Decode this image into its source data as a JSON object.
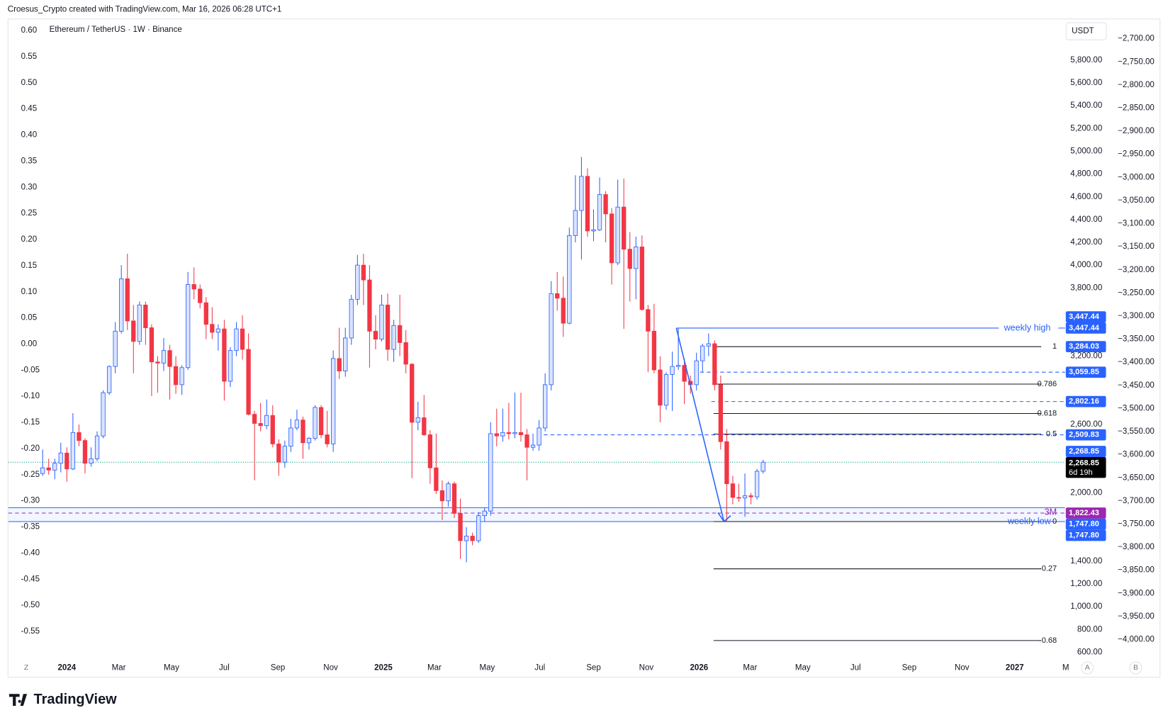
{
  "header": {
    "credit": "Croesus_Crypto created with TradingView.com, Mar 16, 2026 06:28 UTC+1"
  },
  "footer": {
    "logo": "TradingView"
  },
  "chart_data": {
    "type": "candlestick",
    "title": "Ethereum / TetherUS · 1W · Binance",
    "currency": "USDT",
    "x_start": "2023-12-04",
    "colors": {
      "up": "#2962ff",
      "down": "#f23645"
    },
    "candles": [
      [
        2170,
        2380,
        2150,
        2220
      ],
      [
        2220,
        2300,
        2160,
        2200
      ],
      [
        2200,
        2300,
        2120,
        2260
      ],
      [
        2260,
        2440,
        2180,
        2350
      ],
      [
        2350,
        2400,
        2100,
        2210
      ],
      [
        2210,
        2700,
        2200,
        2530
      ],
      [
        2530,
        2600,
        2410,
        2460
      ],
      [
        2460,
        2480,
        2170,
        2260
      ],
      [
        2260,
        2400,
        2230,
        2300
      ],
      [
        2300,
        2540,
        2280,
        2500
      ],
      [
        2500,
        2900,
        2480,
        2880
      ],
      [
        2880,
        3120,
        2860,
        3110
      ],
      [
        3110,
        3500,
        3050,
        3420
      ],
      [
        3420,
        4000,
        3400,
        3880
      ],
      [
        3880,
        4100,
        3430,
        3510
      ],
      [
        3510,
        3650,
        3050,
        3330
      ],
      [
        3330,
        3680,
        3300,
        3650
      ],
      [
        3650,
        3680,
        3300,
        3450
      ],
      [
        3450,
        3480,
        2850,
        3150
      ],
      [
        3150,
        3200,
        2880,
        3140
      ],
      [
        3140,
        3360,
        3070,
        3250
      ],
      [
        3250,
        3300,
        2820,
        3110
      ],
      [
        3110,
        3200,
        2870,
        2950
      ],
      [
        2950,
        3120,
        2860,
        3100
      ],
      [
        3100,
        3940,
        3080,
        3830
      ],
      [
        3830,
        3980,
        3700,
        3790
      ],
      [
        3790,
        3830,
        3620,
        3670
      ],
      [
        3670,
        3720,
        3350,
        3480
      ],
      [
        3480,
        3630,
        3350,
        3410
      ],
      [
        3410,
        3480,
        3250,
        3440
      ],
      [
        3440,
        3520,
        2810,
        2980
      ],
      [
        2980,
        3280,
        2930,
        3250
      ],
      [
        3250,
        3500,
        3200,
        3440
      ],
      [
        3440,
        3560,
        3170,
        3260
      ],
      [
        3260,
        3400,
        2680,
        2690
      ],
      [
        2690,
        2720,
        2110,
        2610
      ],
      [
        2610,
        2790,
        2540,
        2590
      ],
      [
        2590,
        2820,
        2560,
        2680
      ],
      [
        2680,
        2770,
        2400,
        2430
      ],
      [
        2430,
        2470,
        2150,
        2270
      ],
      [
        2270,
        2460,
        2220,
        2410
      ],
      [
        2410,
        2650,
        2360,
        2570
      ],
      [
        2570,
        2730,
        2550,
        2640
      ],
      [
        2640,
        2670,
        2300,
        2440
      ],
      [
        2440,
        2490,
        2380,
        2480
      ],
      [
        2480,
        2770,
        2460,
        2750
      ],
      [
        2750,
        2770,
        2480,
        2510
      ],
      [
        2510,
        2720,
        2400,
        2430
      ],
      [
        2430,
        3250,
        2360,
        3180
      ],
      [
        3180,
        3450,
        3000,
        3070
      ],
      [
        3070,
        3450,
        3020,
        3360
      ],
      [
        3360,
        3740,
        3300,
        3700
      ],
      [
        3700,
        4090,
        3650,
        4000
      ],
      [
        4000,
        4100,
        3650,
        3870
      ],
      [
        3870,
        4000,
        3100,
        3420
      ],
      [
        3420,
        3560,
        3260,
        3350
      ],
      [
        3350,
        3740,
        3330,
        3650
      ],
      [
        3650,
        3750,
        3160,
        3260
      ],
      [
        3260,
        3520,
        3150,
        3470
      ],
      [
        3470,
        3740,
        3200,
        3320
      ],
      [
        3320,
        3430,
        3050,
        3130
      ],
      [
        3130,
        3140,
        2130,
        2620
      ],
      [
        2620,
        2800,
        2550,
        2660
      ],
      [
        2660,
        2860,
        2500,
        2510
      ],
      [
        2510,
        2550,
        2080,
        2220
      ],
      [
        2220,
        2520,
        1990,
        2020
      ],
      [
        2020,
        2110,
        1760,
        1930
      ],
      [
        1930,
        2100,
        1880,
        2080
      ],
      [
        2080,
        2100,
        1780,
        1820
      ],
      [
        1820,
        1950,
        1420,
        1580
      ],
      [
        1580,
        1700,
        1390,
        1620
      ],
      [
        1620,
        1650,
        1540,
        1580
      ],
      [
        1580,
        1830,
        1560,
        1800
      ],
      [
        1800,
        1870,
        1750,
        1840
      ],
      [
        1840,
        2620,
        1800,
        2520
      ],
      [
        2520,
        2740,
        2410,
        2500
      ],
      [
        2500,
        2740,
        2450,
        2530
      ],
      [
        2530,
        2790,
        2470,
        2520
      ],
      [
        2520,
        2880,
        2480,
        2530
      ],
      [
        2530,
        2880,
        2450,
        2510
      ],
      [
        2510,
        2560,
        2110,
        2400
      ],
      [
        2400,
        2520,
        2370,
        2420
      ],
      [
        2420,
        2640,
        2370,
        2570
      ],
      [
        2570,
        3050,
        2540,
        2950
      ],
      [
        2950,
        3860,
        2900,
        3750
      ],
      [
        3750,
        3940,
        3600,
        3710
      ],
      [
        3710,
        3900,
        3370,
        3490
      ],
      [
        3490,
        4330,
        3480,
        4260
      ],
      [
        4260,
        4790,
        4200,
        4480
      ],
      [
        4480,
        4950,
        4050,
        4780
      ],
      [
        4780,
        4850,
        4250,
        4300
      ],
      [
        4300,
        4490,
        4210,
        4310
      ],
      [
        4310,
        4770,
        4300,
        4620
      ],
      [
        4620,
        4650,
        4200,
        4450
      ],
      [
        4450,
        4500,
        3830,
        4020
      ],
      [
        4020,
        4750,
        4000,
        4510
      ],
      [
        4510,
        4760,
        3440,
        4140
      ],
      [
        4140,
        4290,
        3680,
        3970
      ],
      [
        3970,
        4250,
        3700,
        4160
      ],
      [
        4160,
        4260,
        3600,
        3610
      ],
      [
        3610,
        3650,
        3060,
        3420
      ],
      [
        3420,
        3660,
        3050,
        3080
      ],
      [
        3080,
        3200,
        2620,
        2770
      ],
      [
        2770,
        3060,
        2730,
        3040
      ],
      [
        3040,
        3240,
        2720,
        3110
      ],
      [
        3110,
        3447.44,
        3080,
        3120
      ],
      [
        3120,
        3180,
        2780,
        2980
      ],
      [
        2980,
        3030,
        2870,
        2950
      ],
      [
        2950,
        3230,
        2900,
        3160
      ],
      [
        3160,
        3310,
        3060,
        3290
      ],
      [
        3290,
        3400,
        3200,
        3310
      ],
      [
        3310,
        3340,
        2900,
        2950
      ],
      [
        2950,
        3030,
        2380,
        2450
      ],
      [
        2450,
        2560,
        1747.8,
        2080
      ],
      [
        2080,
        2150,
        1900,
        1960
      ],
      [
        1960,
        2080,
        1920,
        1955
      ],
      [
        1955,
        2170,
        1790,
        1975
      ],
      [
        1975,
        2000,
        1900,
        1965
      ],
      [
        1965,
        2210,
        1940,
        2190
      ],
      [
        2190,
        2290,
        2170,
        2268.85
      ]
    ],
    "ylim": [
      535,
      6165
    ],
    "yticks": [
      {
        "value": 600,
        "label": "600.00"
      },
      {
        "value": 800,
        "label": "800.00"
      },
      {
        "value": 1000,
        "label": "1,000.00"
      },
      {
        "value": 1200,
        "label": "1,200.00"
      },
      {
        "value": 1400,
        "label": "1,400.00"
      },
      {
        "value": 2000,
        "label": "2,000.00"
      },
      {
        "value": 2600,
        "label": "2,600.00"
      },
      {
        "value": 3200,
        "label": "3,200.00"
      },
      {
        "value": 3800,
        "label": "3,800.00"
      },
      {
        "value": 4000,
        "label": "4,000.00"
      },
      {
        "value": 4200,
        "label": "4,200.00"
      },
      {
        "value": 4400,
        "label": "4,400.00"
      },
      {
        "value": 4600,
        "label": "4,600.00"
      },
      {
        "value": 4800,
        "label": "4,800.00"
      },
      {
        "value": 5000,
        "label": "5,000.00"
      },
      {
        "value": 5200,
        "label": "5,200.00"
      },
      {
        "value": 5400,
        "label": "5,400.00"
      },
      {
        "value": 5600,
        "label": "5,600.00"
      },
      {
        "value": 5800,
        "label": "5,800.00"
      }
    ],
    "left_axis": {
      "ylim": [
        -0.6042,
        0.6228
      ],
      "ticks": [
        {
          "value": 0.6,
          "label": "0.60"
        },
        {
          "value": 0.55,
          "label": "0.55"
        },
        {
          "value": 0.5,
          "label": "0.50"
        },
        {
          "value": 0.45,
          "label": "0.45"
        },
        {
          "value": 0.4,
          "label": "0.40"
        },
        {
          "value": 0.35,
          "label": "0.35"
        },
        {
          "value": 0.3,
          "label": "0.30"
        },
        {
          "value": 0.25,
          "label": "0.25"
        },
        {
          "value": 0.2,
          "label": "0.20"
        },
        {
          "value": 0.15,
          "label": "0.15"
        },
        {
          "value": 0.1,
          "label": "0.10"
        },
        {
          "value": 0.05,
          "label": "0.05"
        },
        {
          "value": 0,
          "label": "0.00"
        },
        {
          "value": -0.05,
          "label": "-0.05"
        },
        {
          "value": -0.1,
          "label": "-0.10"
        },
        {
          "value": -0.15,
          "label": "-0.15"
        },
        {
          "value": -0.2,
          "label": "-0.20"
        },
        {
          "value": -0.25,
          "label": "-0.25"
        },
        {
          "value": -0.3,
          "label": "-0.30"
        },
        {
          "value": -0.35,
          "label": "-0.35"
        },
        {
          "value": -0.4,
          "label": "-0.40"
        },
        {
          "value": -0.45,
          "label": "-0.45"
        },
        {
          "value": -0.5,
          "label": "-0.50"
        },
        {
          "value": -0.55,
          "label": "-0.55"
        }
      ]
    },
    "far_right_axis": {
      "ylim": [
        -4043.5,
        -2656.5
      ],
      "ticks": [
        {
          "value": -2700,
          "label": "−2,700.00"
        },
        {
          "value": -2750,
          "label": "−2,750.00"
        },
        {
          "value": -2800,
          "label": "−2,800.00"
        },
        {
          "value": -2850,
          "label": "−2,850.00"
        },
        {
          "value": -2900,
          "label": "−2,900.00"
        },
        {
          "value": -2950,
          "label": "−2,950.00"
        },
        {
          "value": -3000,
          "label": "−3,000.00"
        },
        {
          "value": -3050,
          "label": "−3,050.00"
        },
        {
          "value": -3100,
          "label": "−3,100.00"
        },
        {
          "value": -3150,
          "label": "−3,150.00"
        },
        {
          "value": -3200,
          "label": "−3,200.00"
        },
        {
          "value": -3250,
          "label": "−3,250.00"
        },
        {
          "value": -3300,
          "label": "−3,300.00"
        },
        {
          "value": -3350,
          "label": "−3,350.00"
        },
        {
          "value": -3400,
          "label": "−3,400.00"
        },
        {
          "value": -3450,
          "label": "−3,450.00"
        },
        {
          "value": -3500,
          "label": "−3,500.00"
        },
        {
          "value": -3550,
          "label": "−3,550.00"
        },
        {
          "value": -3600,
          "label": "−3,600.00"
        },
        {
          "value": -3650,
          "label": "−3,650.00"
        },
        {
          "value": -3700,
          "label": "−3,700.00"
        },
        {
          "value": -3750,
          "label": "−3,750.00"
        },
        {
          "value": -3800,
          "label": "−3,800.00"
        },
        {
          "value": -3850,
          "label": "−3,850.00"
        },
        {
          "value": -3900,
          "label": "−3,900.00"
        },
        {
          "value": -3950,
          "label": "−3,950.00"
        },
        {
          "value": -4000,
          "label": "−4,000.00"
        }
      ]
    },
    "xticks": [
      {
        "value": "2024-01",
        "label": "2024"
      },
      {
        "value": "2024-03",
        "label": "Mar"
      },
      {
        "value": "2024-05",
        "label": "May"
      },
      {
        "value": "2024-07",
        "label": "Jul"
      },
      {
        "value": "2024-09",
        "label": "Sep"
      },
      {
        "value": "2024-11",
        "label": "Nov"
      },
      {
        "value": "2025-01",
        "label": "2025"
      },
      {
        "value": "2025-03",
        "label": "Mar"
      },
      {
        "value": "2025-05",
        "label": "May"
      },
      {
        "value": "2025-07",
        "label": "Jul"
      },
      {
        "value": "2025-09",
        "label": "Sep"
      },
      {
        "value": "2025-11",
        "label": "Nov"
      },
      {
        "value": "2026-01",
        "label": "2026"
      },
      {
        "value": "2026-03",
        "label": "Mar"
      },
      {
        "value": "2026-05",
        "label": "May"
      },
      {
        "value": "2026-07",
        "label": "Jul"
      },
      {
        "value": "2026-09",
        "label": "Sep"
      },
      {
        "value": "2026-11",
        "label": "Nov"
      },
      {
        "value": "2027-01",
        "label": "2027"
      },
      {
        "value": "2027-03",
        "label": "M"
      }
    ],
    "axis_buttons": [
      "Z",
      "A",
      "B"
    ],
    "weekly_high": {
      "value": 3447.44,
      "label": "weekly high"
    },
    "weekly_low": {
      "value": 1747.8,
      "label": "weekly low"
    },
    "zone_top": 1870,
    "three_month": {
      "value": 1822.43,
      "label": "3M"
    },
    "dashed_levels": [
      3059.85,
      2802.16,
      2509.83
    ],
    "current_price": 2268.85,
    "fib": {
      "high": 3284.03,
      "low": 1747.8,
      "levels": [
        {
          "value": 1,
          "label": "1"
        },
        {
          "value": 0.786,
          "label": "0.786"
        },
        {
          "value": 0.618,
          "label": "0.618"
        },
        {
          "value": 0.5,
          "label": "0.5"
        },
        {
          "value": 0,
          "label": "0"
        },
        {
          "value": -0.27,
          "label": "-0.27"
        },
        {
          "value": -0.68,
          "label": "-0.68"
        }
      ]
    },
    "badges": [
      {
        "value": 1822.43,
        "label": "1,822.43",
        "color": "#9c27b0"
      },
      {
        "value": 1747.8,
        "label": "1,747.80",
        "color": "#2962ff"
      },
      {
        "value": 1747.8,
        "label": "1,747.80",
        "color": "#2962ff"
      },
      {
        "value": 2268.85,
        "label": "2,268.85",
        "color": "#000000",
        "countdown": "6d 19h"
      },
      {
        "value": 2268.85,
        "label": "2,268.85",
        "color": "#2962ff"
      },
      {
        "value": 3447.44,
        "label": "3,447.44",
        "color": "#2962ff"
      },
      {
        "value": 3447.44,
        "label": "3,447.44",
        "color": "#2962ff"
      },
      {
        "value": 3284.03,
        "label": "3,284.03",
        "color": "#2962ff"
      },
      {
        "value": 3059.85,
        "label": "3,059.85",
        "color": "#2962ff"
      },
      {
        "value": 2802.16,
        "label": "2,802.16",
        "color": "#2962ff"
      },
      {
        "value": 2509.83,
        "label": "2,509.83",
        "color": "#2962ff"
      }
    ]
  }
}
